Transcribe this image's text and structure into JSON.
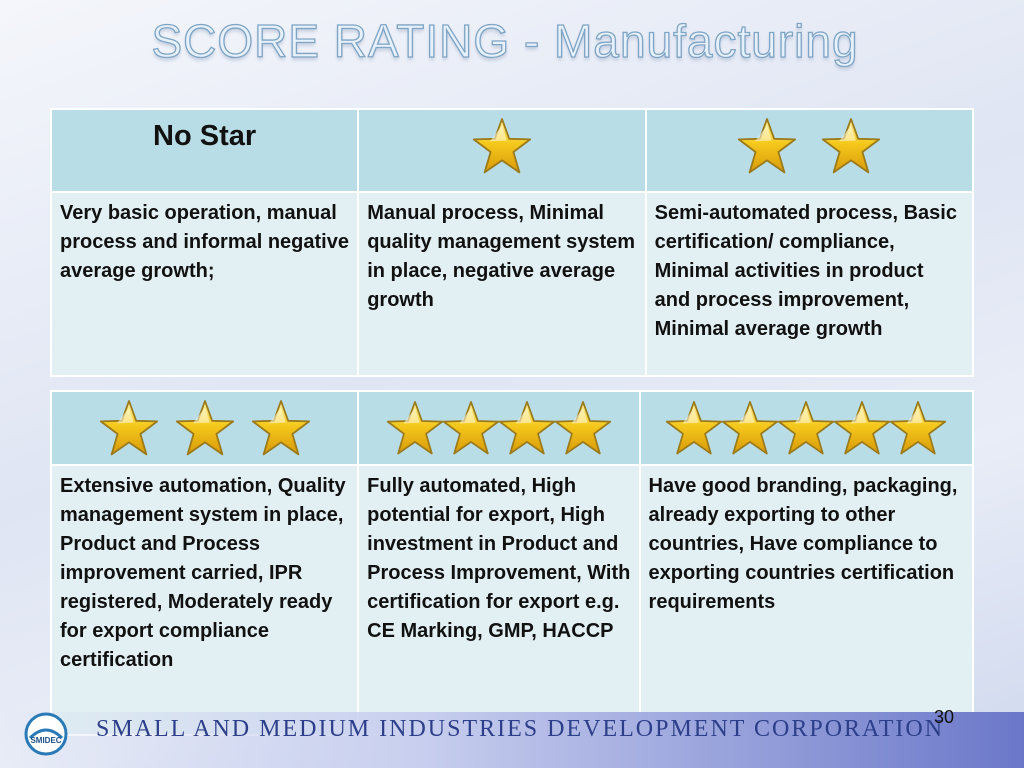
{
  "slide": {
    "title": "SCORE RATING - Manufacturing",
    "page_number": "30",
    "footer_text": "SMALL AND MEDIUM INDUSTRIES DEVELOPMENT CORPORATION",
    "logo_text": "SMIDEC"
  },
  "colors": {
    "header_cell": "#b9dde6",
    "body_cell": "#e3f0f3",
    "star_gold": "#f2c318",
    "star_outline": "#b8860b"
  },
  "table1": {
    "headers": [
      {
        "label": "No Star",
        "stars": 0
      },
      {
        "label": "",
        "stars": 1
      },
      {
        "label": "",
        "stars": 2
      }
    ],
    "descriptions": [
      "Very basic operation, manual process and informal negative average growth;",
      "Manual process, Minimal quality management system in place, negative average growth",
      "Semi-automated process, Basic certification/ compliance, Minimal activities in product and process improvement, Minimal average growth"
    ]
  },
  "table2": {
    "headers": [
      {
        "stars": 3
      },
      {
        "stars": 4
      },
      {
        "stars": 5
      }
    ],
    "descriptions": [
      "Extensive automation, Quality management system in place, Product and Process improvement carried, IPR registered, Moderately ready for export compliance certification",
      "Fully automated, High potential for export, High investment in Product and Process Improvement, With certification for export e.g. CE Marking, GMP, HACCP",
      "Have good branding, packaging, already exporting to other countries, Have compliance to exporting countries certification requirements"
    ]
  }
}
